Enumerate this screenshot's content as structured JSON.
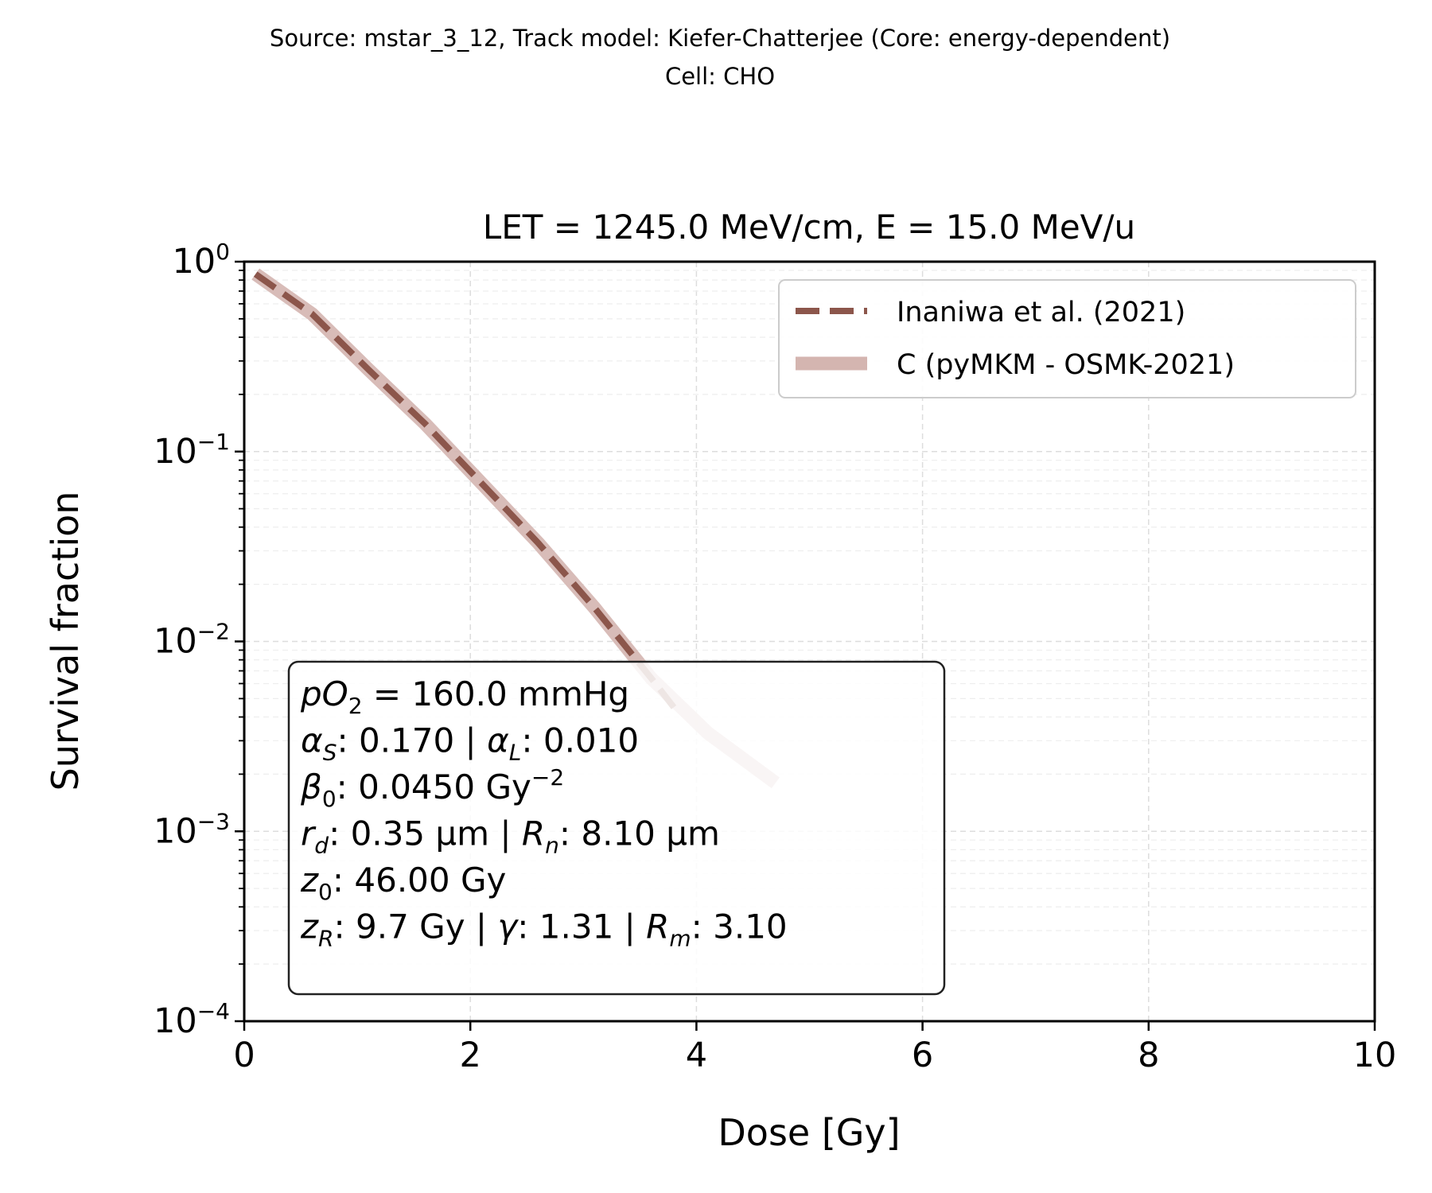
{
  "chart_data": {
    "type": "line",
    "suptitle_lines": [
      "Source: mstar_3_12, Track model: Kiefer-Chatterjee (Core: energy-dependent)",
      "Cell: CHO"
    ],
    "title": "LET = 1245.0 MeV/cm, E = 15.0 MeV/u",
    "xlabel": "Dose [Gy]",
    "ylabel": "Survival fraction",
    "xlim": [
      0,
      10
    ],
    "ylim": [
      0.0001,
      1
    ],
    "yscale": "log",
    "grid": true,
    "x_ticks": [
      0,
      2,
      4,
      6,
      8,
      10
    ],
    "x_tick_labels": [
      "0",
      "2",
      "4",
      "6",
      "8",
      "10"
    ],
    "y_ticks": [
      1,
      0.1,
      0.01,
      0.001,
      0.0001
    ],
    "y_tick_labels": [
      {
        "base": "10",
        "exp": "0"
      },
      {
        "base": "10",
        "exp": "−1"
      },
      {
        "base": "10",
        "exp": "−2"
      },
      {
        "base": "10",
        "exp": "−3"
      },
      {
        "base": "10",
        "exp": "−4"
      }
    ],
    "legend_position": "upper right",
    "series": [
      {
        "name": "C (pyMKM - OSMK-2021)",
        "style": "solid-thick",
        "color": "#d4b5b0",
        "x": [
          0.1,
          0.6,
          1.1,
          1.6,
          2.1,
          2.6,
          3.1,
          3.6,
          4.1,
          4.7
        ],
        "y": [
          0.86,
          0.53,
          0.27,
          0.14,
          0.068,
          0.033,
          0.015,
          0.0064,
          0.0033,
          0.0018
        ]
      },
      {
        "name": "Inaniwa et al. (2021)",
        "style": "dashed",
        "color": "#8c564b",
        "x": [
          0.1,
          0.6,
          1.1,
          1.6,
          2.1,
          2.6,
          3.1,
          3.6,
          3.8
        ],
        "y": [
          0.86,
          0.53,
          0.27,
          0.14,
          0.068,
          0.033,
          0.015,
          0.0064,
          0.0045
        ]
      }
    ],
    "annotation": {
      "lines": [
        [
          {
            "t": "pO",
            "i": true
          },
          {
            "t": "2",
            "sub": true
          },
          {
            "t": " = 160.0 mmHg"
          }
        ],
        [
          {
            "t": "α",
            "i": true
          },
          {
            "t": "S",
            "sub": true,
            "i": true
          },
          {
            "t": ": 0.170 | "
          },
          {
            "t": "α",
            "i": true
          },
          {
            "t": "L",
            "sub": true,
            "i": true
          },
          {
            "t": ": 0.010"
          }
        ],
        [
          {
            "t": "β",
            "i": true
          },
          {
            "t": "0",
            "sub": true
          },
          {
            "t": ": 0.0450 Gy"
          },
          {
            "t": "−2",
            "sup": true
          }
        ],
        [
          {
            "t": "r",
            "i": true
          },
          {
            "t": "d",
            "sub": true,
            "i": true
          },
          {
            "t": ": 0.35 µm | "
          },
          {
            "t": "R",
            "i": true
          },
          {
            "t": "n",
            "sub": true,
            "i": true
          },
          {
            "t": ": 8.10 µm"
          }
        ],
        [
          {
            "t": "z",
            "i": true
          },
          {
            "t": "0",
            "sub": true
          },
          {
            "t": ": 46.00 Gy"
          }
        ],
        [
          {
            "t": "z",
            "i": true
          },
          {
            "t": "R",
            "sub": true,
            "i": true
          },
          {
            "t": ": 9.7 Gy | "
          },
          {
            "t": "γ",
            "i": true
          },
          {
            "t": ": 1.31 | "
          },
          {
            "t": "R",
            "i": true
          },
          {
            "t": "m",
            "sub": true,
            "i": true
          },
          {
            "t": ": 3.10"
          }
        ]
      ]
    }
  }
}
